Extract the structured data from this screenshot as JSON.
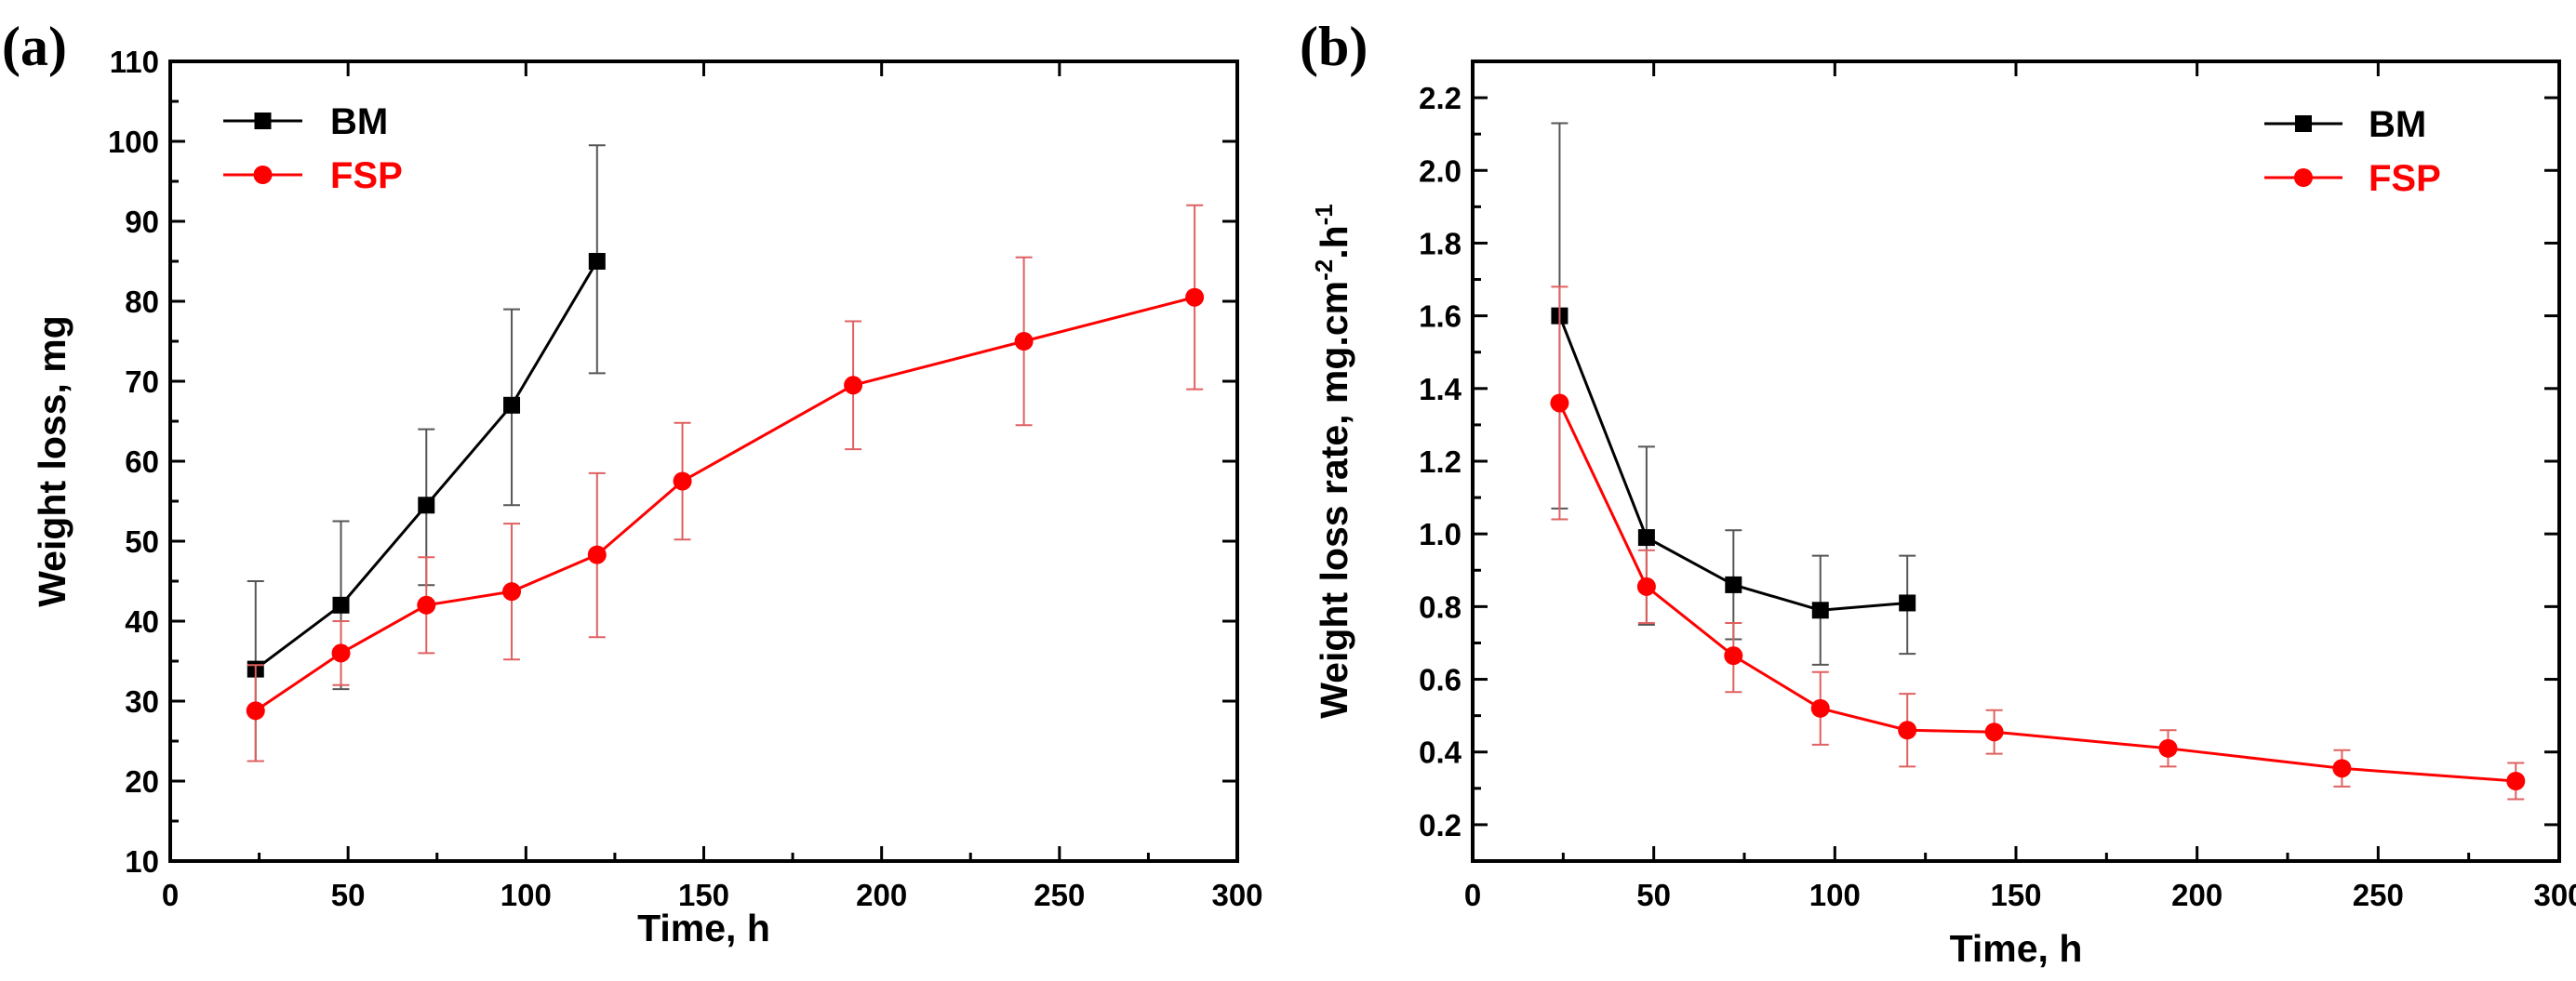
{
  "chart_data": [
    {
      "type": "line",
      "panel_label": "(a)",
      "xlabel": "Time, h",
      "ylabel": "Weight loss, mg",
      "xlim": [
        0,
        300
      ],
      "ylim": [
        10,
        110
      ],
      "xticks": [
        0,
        50,
        100,
        150,
        200,
        250,
        300
      ],
      "xtick_labels": [
        "0",
        "50",
        "100",
        "150",
        "200",
        "250",
        "300"
      ],
      "yticks": [
        10,
        20,
        30,
        40,
        50,
        60,
        70,
        80,
        90,
        100,
        110
      ],
      "ytick_labels": [
        "10",
        "20",
        "30",
        "40",
        "50",
        "60",
        "70",
        "80",
        "90",
        "100",
        "110"
      ],
      "legend_position": "top-left",
      "series": [
        {
          "name": "BM",
          "color": "#000000",
          "marker": "square",
          "x": [
            24,
            48,
            72,
            96,
            120
          ],
          "y": [
            34,
            42,
            54.5,
            67,
            85
          ],
          "err_low": [
            11.5,
            10.5,
            10,
            12.5,
            14
          ],
          "err_high": [
            11,
            10.5,
            9.5,
            12,
            14.5
          ]
        },
        {
          "name": "FSP",
          "color": "#ff0000",
          "marker": "circle",
          "x": [
            24,
            48,
            72,
            96,
            120,
            144,
            192,
            240,
            288
          ],
          "y": [
            28.8,
            36,
            42,
            43.7,
            48.3,
            57.5,
            69.5,
            75,
            80.5
          ],
          "err_low": [
            6.3,
            4,
            6,
            8.5,
            10.3,
            7.3,
            8,
            10.5,
            11.5
          ],
          "err_high": [
            5.7,
            4,
            6,
            8.5,
            10.2,
            7.3,
            8,
            10.5,
            11.5
          ]
        }
      ]
    },
    {
      "type": "line",
      "panel_label": "(b)",
      "xlabel": "Time, h",
      "ylabel": "Weight loss rate, mg.cm",
      "ylabel_sup1": "-2",
      "ylabel_mid": ".h",
      "ylabel_sup2": "-1",
      "xlim": [
        0,
        300
      ],
      "ylim": [
        0.1,
        2.3
      ],
      "xticks": [
        0,
        50,
        100,
        150,
        200,
        250,
        300
      ],
      "xtick_labels": [
        "0",
        "50",
        "100",
        "150",
        "200",
        "250",
        "300"
      ],
      "yticks": [
        0.2,
        0.4,
        0.6,
        0.8,
        1.0,
        1.2,
        1.4,
        1.6,
        1.8,
        2.0,
        2.2
      ],
      "ytick_labels": [
        "0.2",
        "0.4",
        "0.6",
        "0.8",
        "1.0",
        "1.2",
        "1.4",
        "1.6",
        "1.8",
        "2.0",
        "2.2"
      ],
      "legend_position": "top-right",
      "series": [
        {
          "name": "BM",
          "color": "#000000",
          "marker": "square",
          "x": [
            24,
            48,
            72,
            96,
            120
          ],
          "y": [
            1.6,
            0.99,
            0.86,
            0.79,
            0.81
          ],
          "err_low": [
            0.53,
            0.24,
            0.15,
            0.15,
            0.14
          ],
          "err_high": [
            0.53,
            0.25,
            0.15,
            0.15,
            0.13
          ]
        },
        {
          "name": "FSP",
          "color": "#ff0000",
          "marker": "circle",
          "x": [
            24,
            48,
            72,
            96,
            120,
            144,
            192,
            240,
            288
          ],
          "y": [
            1.36,
            0.855,
            0.665,
            0.52,
            0.46,
            0.455,
            0.41,
            0.355,
            0.32
          ],
          "err_low": [
            0.32,
            0.1,
            0.1,
            0.1,
            0.1,
            0.06,
            0.05,
            0.05,
            0.05
          ],
          "err_high": [
            0.32,
            0.1,
            0.09,
            0.1,
            0.1,
            0.06,
            0.05,
            0.05,
            0.05
          ]
        }
      ]
    }
  ]
}
